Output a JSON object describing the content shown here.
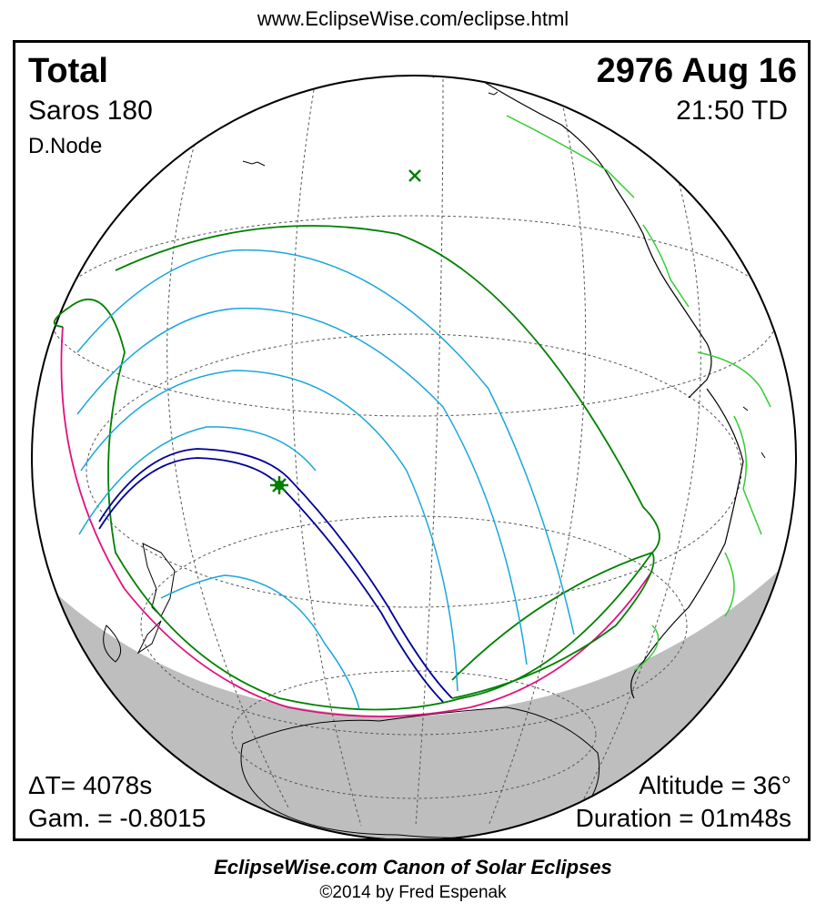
{
  "header": {
    "url": "www.EclipseWise.com/eclipse.html"
  },
  "eclipse": {
    "type": "Total",
    "date": "2976 Aug 16",
    "saros": "Saros 180",
    "time": "21:50 TD",
    "node": "D.Node"
  },
  "stats": {
    "delta_t": "ΔT=   4078s",
    "gamma": "Gam. = -0.8015",
    "altitude": "Altitude = 36°",
    "duration": "Duration = 01m48s"
  },
  "footer": {
    "canon": "EclipseWise.com Canon of Solar Eclipses",
    "copyright": "©2014 by Fred Espenak"
  },
  "colors": {
    "penumbra_limit": "#008000",
    "partial_lines": "#1aa6dc",
    "central_path": "#000099",
    "rise_set": "#e0117f",
    "night_shade": "#bebebe",
    "coastline": "#33cc33"
  },
  "markers": [
    "subsolar-point-cross",
    "greatest-eclipse-star"
  ]
}
